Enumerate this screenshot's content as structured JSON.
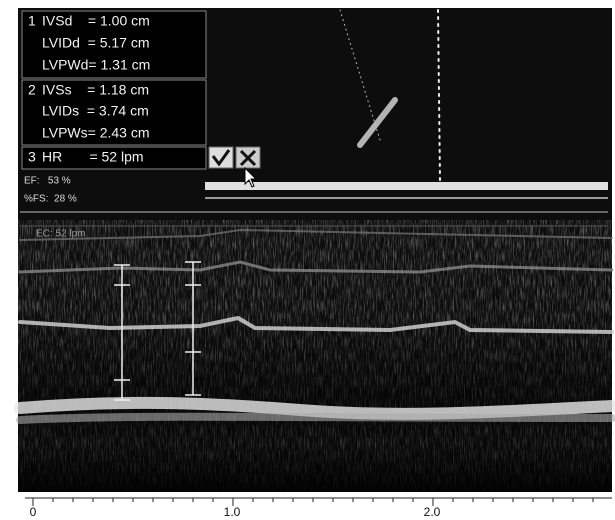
{
  "measurements": [
    {
      "number": "1",
      "rows": [
        "IVSd    = 1.00 cm",
        "LVIDd  = 5.17 cm",
        "LVPWd= 1.31 cm"
      ]
    },
    {
      "number": "2",
      "rows": [
        "IVSs    = 1.18 cm",
        "LVIDs  = 3.74 cm",
        "LVPWs= 2.43 cm"
      ]
    },
    {
      "number": "3",
      "rows": [
        "HR       = 52 lpm"
      ]
    }
  ],
  "results": [
    "EF:   53 %",
    "%FS:  28 %"
  ],
  "ecg_label": "EC: 52 lpm",
  "time_axis": [
    "0",
    "1.0",
    "2.0"
  ]
}
